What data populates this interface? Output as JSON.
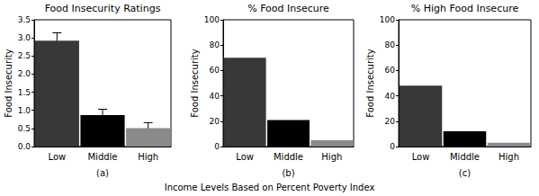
{
  "xlabel": "Income Levels Based on Percent Poverty Index",
  "chart_data": [
    {
      "type": "bar",
      "title": "Food Insecurity Ratings",
      "ylabel": "Food Insecurity",
      "xlabel": "(a)",
      "categories": [
        "Low",
        "Middle",
        "High"
      ],
      "values": [
        2.92,
        0.87,
        0.51
      ],
      "errors": [
        0.22,
        0.16,
        0.15
      ],
      "colors": [
        "#383838",
        "#000000",
        "#8a8a8a"
      ],
      "ylim": [
        0,
        3.5
      ],
      "yticks": [
        {
          "value": 0,
          "label": "0.0"
        },
        {
          "value": 0.5,
          "label": "0.5"
        },
        {
          "value": 1,
          "label": "1.0"
        },
        {
          "value": 1.5,
          "label": "1.5"
        },
        {
          "value": 2,
          "label": "2.0"
        },
        {
          "value": 2.5,
          "label": "2.5"
        },
        {
          "value": 3,
          "label": "3.0"
        },
        {
          "value": 3.5,
          "label": "3.5"
        }
      ],
      "grid": false
    },
    {
      "type": "bar",
      "title": "% Food Insecure",
      "ylabel": "Food Insecurity",
      "xlabel": "(b)",
      "categories": [
        "Low",
        "Middle",
        "High"
      ],
      "values": [
        70,
        21,
        5
      ],
      "colors": [
        "#383838",
        "#000000",
        "#8a8a8a"
      ],
      "ylim": [
        0,
        100
      ],
      "yticks": [
        0,
        20,
        40,
        60,
        80,
        100
      ],
      "grid": false
    },
    {
      "type": "bar",
      "title": "% High Food Insecure",
      "ylabel": "Food Insecurity",
      "xlabel": "(c)",
      "categories": [
        "Low",
        "Middle",
        "High"
      ],
      "values": [
        48,
        12,
        3
      ],
      "colors": [
        "#383838",
        "#000000",
        "#8a8a8a"
      ],
      "ylim": [
        0,
        100
      ],
      "yticks": [
        0,
        20,
        40,
        60,
        80,
        100
      ],
      "grid": false
    }
  ]
}
